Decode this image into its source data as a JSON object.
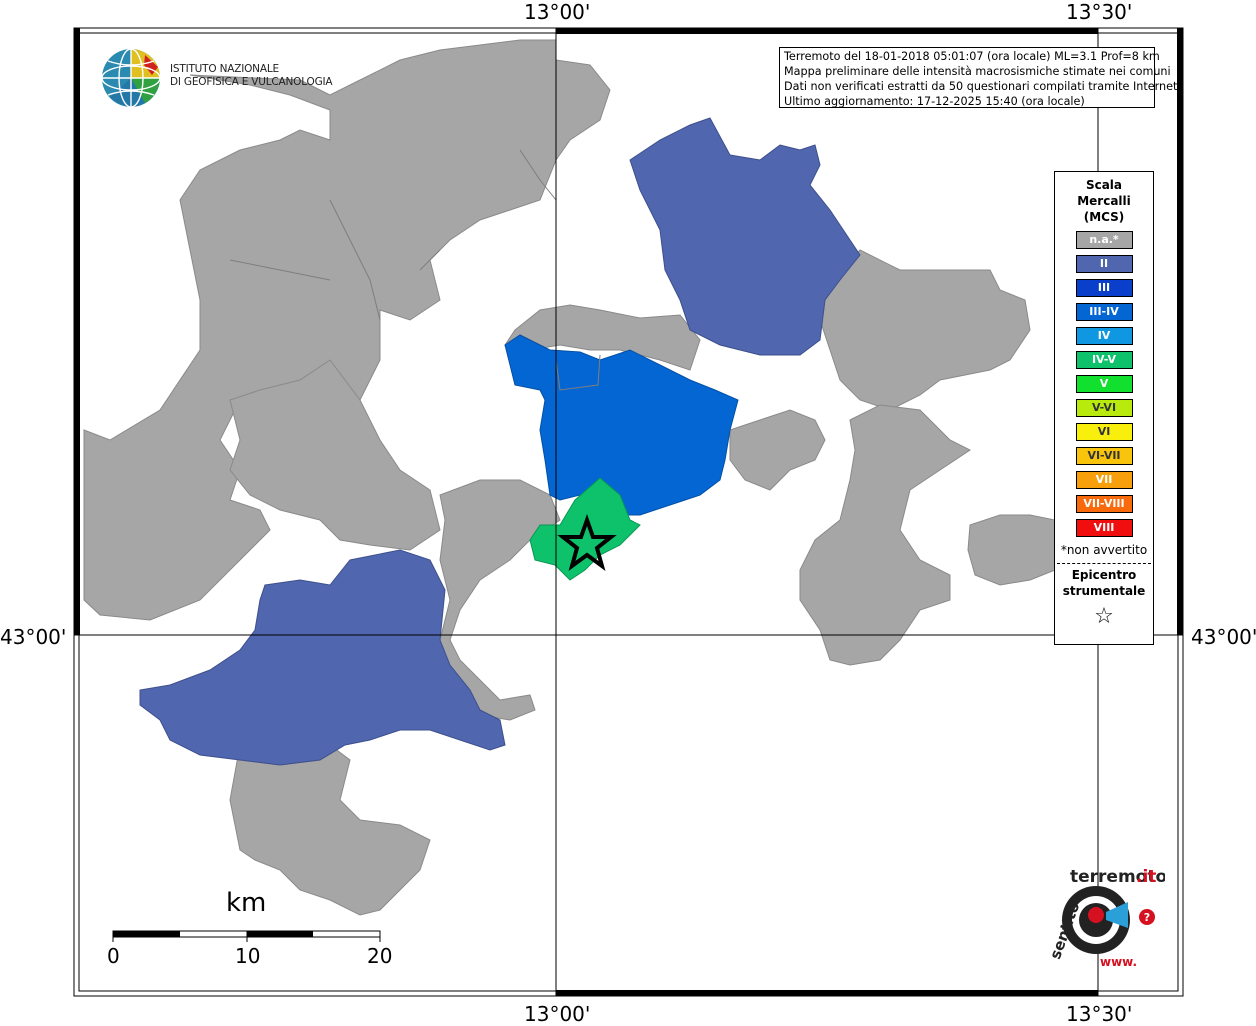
{
  "map": {
    "graticule": {
      "top_left": "13°00'",
      "top_right": "13°30'",
      "bottom_left": "13°00'",
      "bottom_right": "13°30'",
      "left_lat": "43°00'",
      "right_lat": "43°00'"
    },
    "info": {
      "line1": "Terremoto del 18-01-2018 05:01:07 (ora locale) ML=3.1 Prof=8 km",
      "line2": "Mappa preliminare delle intensità macrosismiche stimate nei comuni",
      "line3": "Dati non verificati estratti da 50 questionari compilati tramite Internet.",
      "line4": "Ultimo aggiornamento: 17-12-2025 15:40 (ora locale)"
    },
    "institute": {
      "line1": "ISTITUTO NAZIONALE",
      "line2": "DI GEOFISICA E VULCANOLOGIA"
    },
    "legend": {
      "title1": "Scala",
      "title2": "Mercalli",
      "title3": "(MCS)",
      "items": [
        {
          "label": "n.a.*",
          "color": "#a6a6a6"
        },
        {
          "label": "II",
          "color": "#5066ae"
        },
        {
          "label": "III",
          "color": "#0a3fcc"
        },
        {
          "label": "III-IV",
          "color": "#0466d2"
        },
        {
          "label": "IV",
          "color": "#0f97e2"
        },
        {
          "label": "IV-V",
          "color": "#0ec26c"
        },
        {
          "label": "V",
          "color": "#12e02e"
        },
        {
          "label": "V-VI",
          "color": "#b8ea0e"
        },
        {
          "label": "VI",
          "color": "#f8f00c"
        },
        {
          "label": "VI-VII",
          "color": "#f8c40c"
        },
        {
          "label": "VII",
          "color": "#f8a00c"
        },
        {
          "label": "VII-VIII",
          "color": "#f86a0c"
        },
        {
          "label": "VIII",
          "color": "#f00e0e"
        }
      ],
      "note": "*non avvertito",
      "epicentre1": "Epicentro",
      "epicentre2": "strumentale",
      "epicentre_symbol": "☆"
    },
    "scale": {
      "unit": "km",
      "ticks": [
        "0",
        "10",
        "20"
      ]
    },
    "site_logo": "hai sentito il terremoto.it · www"
  }
}
